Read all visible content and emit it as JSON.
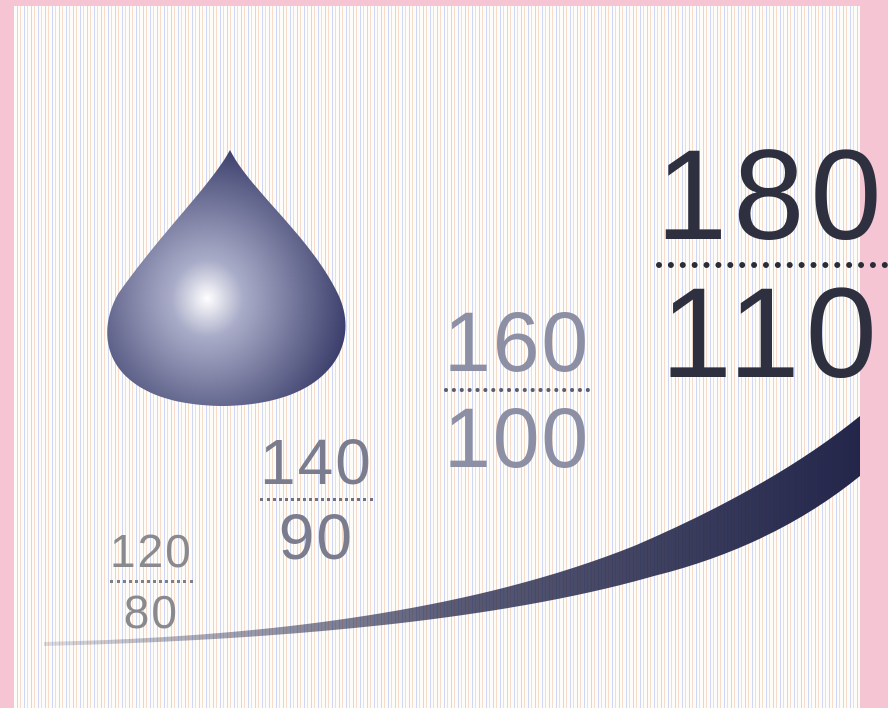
{
  "readings": [
    {
      "systolic": "120",
      "diastolic": "80"
    },
    {
      "systolic": "140",
      "diastolic": "90"
    },
    {
      "systolic": "160",
      "diastolic": "100"
    },
    {
      "systolic": "180",
      "diastolic": "110"
    }
  ],
  "colors": {
    "background": "#f6c5d4",
    "panel": "#fdfcf8",
    "drop": "#3a3d6a",
    "curve": "#23264a"
  },
  "icons": [
    "blood-drop-icon"
  ]
}
